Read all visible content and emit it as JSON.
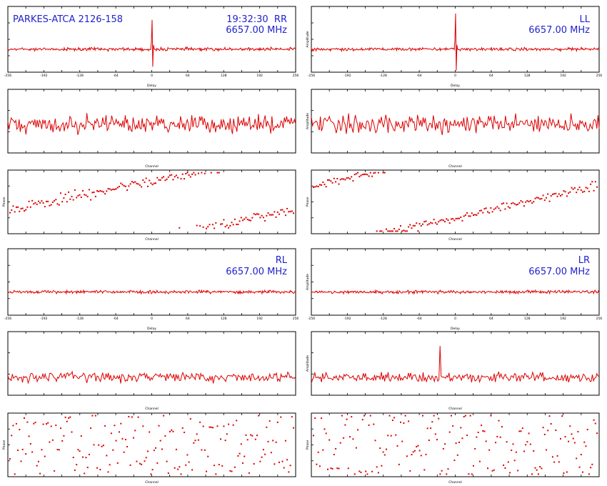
{
  "header": {
    "source": "PARKES-ATCA 2126-158",
    "time": "19:32:30",
    "frequency": "6657.00 MHz"
  },
  "chart_data": {
    "type": "line",
    "layout_note": "2 columns x 6 rows of panels: per polarization a delay-amplitude plot, a channel-amplitude plot and a channel-phase scatter",
    "polarizations": [
      {
        "name": "RR",
        "column": "left",
        "block": "top",
        "delay_peak": {
          "x": 0,
          "value": 41
        },
        "delay_baseline": 0
      },
      {
        "name": "LL",
        "column": "right",
        "block": "top",
        "delay_peak": {
          "x": 0,
          "value": 50
        },
        "delay_baseline": 0
      },
      {
        "name": "RL",
        "column": "left",
        "block": "bottom",
        "delay_peak": null,
        "delay_baseline": 0
      },
      {
        "name": "LR",
        "column": "right",
        "block": "bottom",
        "delay_peak": null,
        "delay_baseline": 0
      }
    ],
    "delay_axis": {
      "xlabel": "Delay",
      "ylabel": "Amplitude",
      "xlim": [
        -256,
        256
      ],
      "xticks": [
        -256,
        -192,
        -128,
        -64,
        0,
        64,
        128,
        192,
        256
      ]
    },
    "channel_amp_axis": {
      "xlabel": "Channel",
      "ylabel": "Amplitude"
    },
    "phase_axis": {
      "xlabel": "Channel",
      "ylabel": "Phase",
      "ylim": [
        -180,
        180
      ]
    },
    "channel_count": 256,
    "series_color": "#dd0000",
    "axis_color": "#000000"
  }
}
